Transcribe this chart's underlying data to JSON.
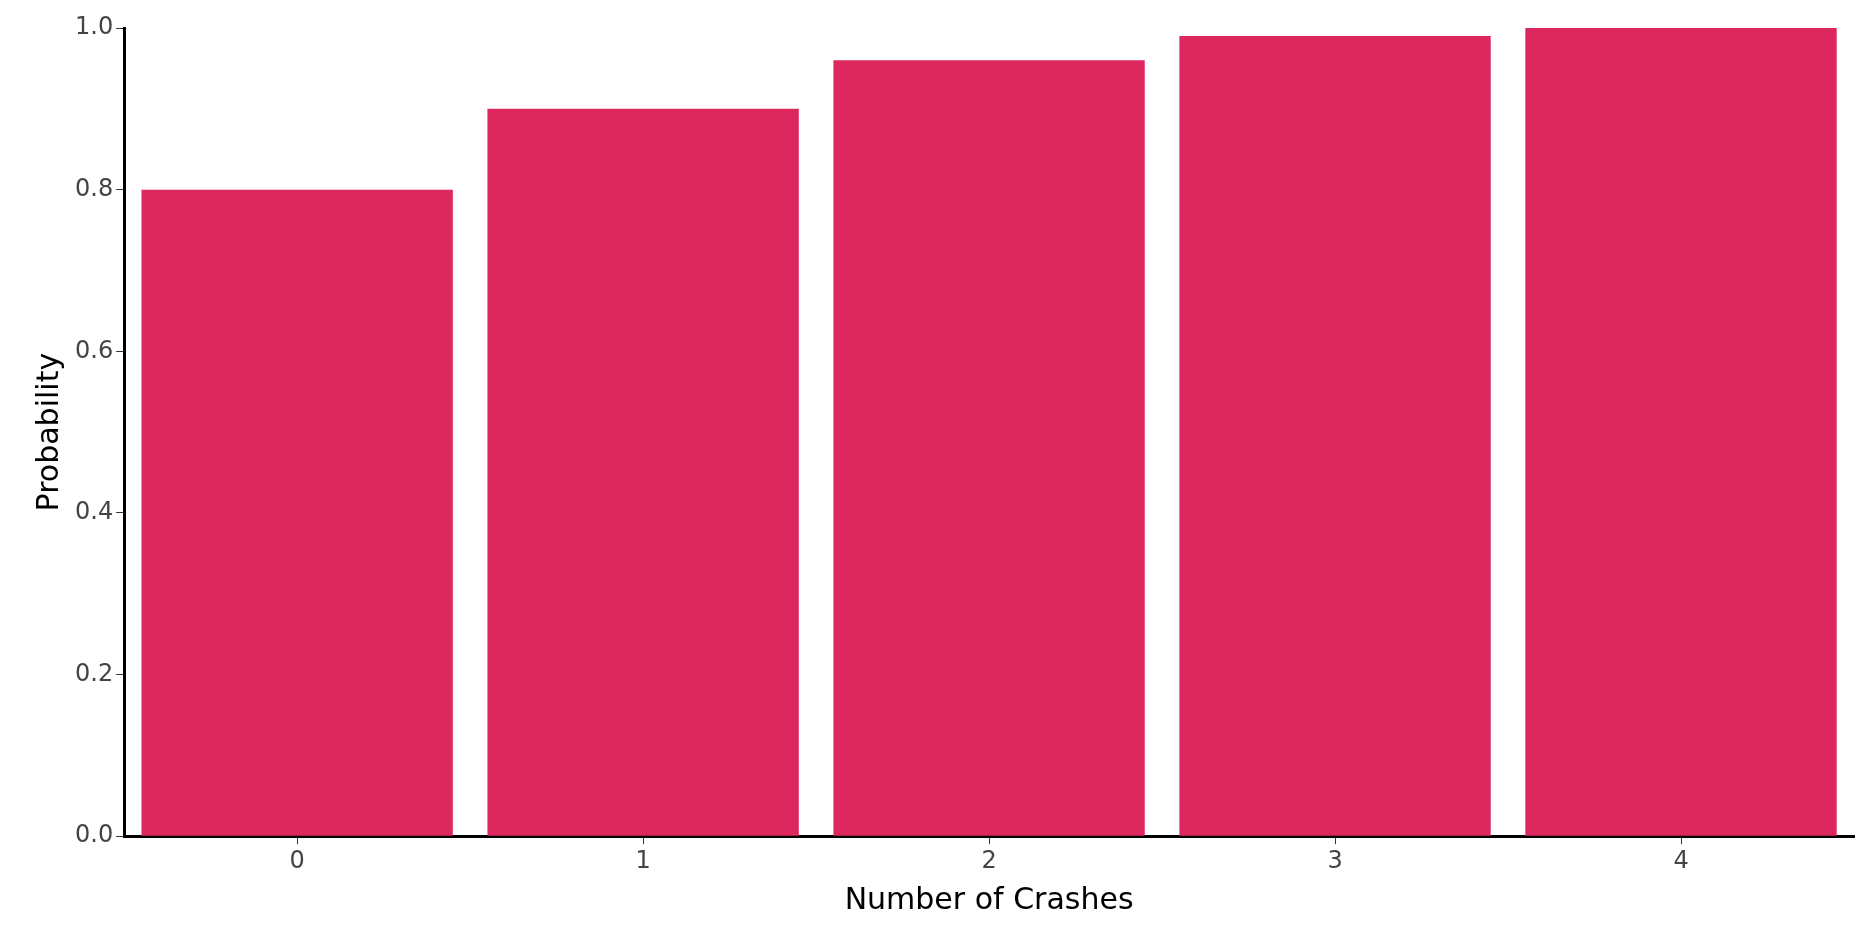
{
  "chart_data": {
    "type": "bar",
    "xlabel": "Number of Crashes",
    "ylabel": "Probability",
    "categories": [
      "0",
      "1",
      "2",
      "3",
      "4"
    ],
    "values": [
      0.8,
      0.9,
      0.96,
      0.99,
      1.0
    ],
    "color": "#dd285f",
    "ylim": [
      0,
      1
    ],
    "yticks": [
      {
        "value": 0,
        "label": "0.0"
      },
      0.2,
      0.4,
      0.6,
      0.8,
      {
        "value": 1,
        "label": "1.0"
      }
    ],
    "grid": false,
    "legend": false
  }
}
